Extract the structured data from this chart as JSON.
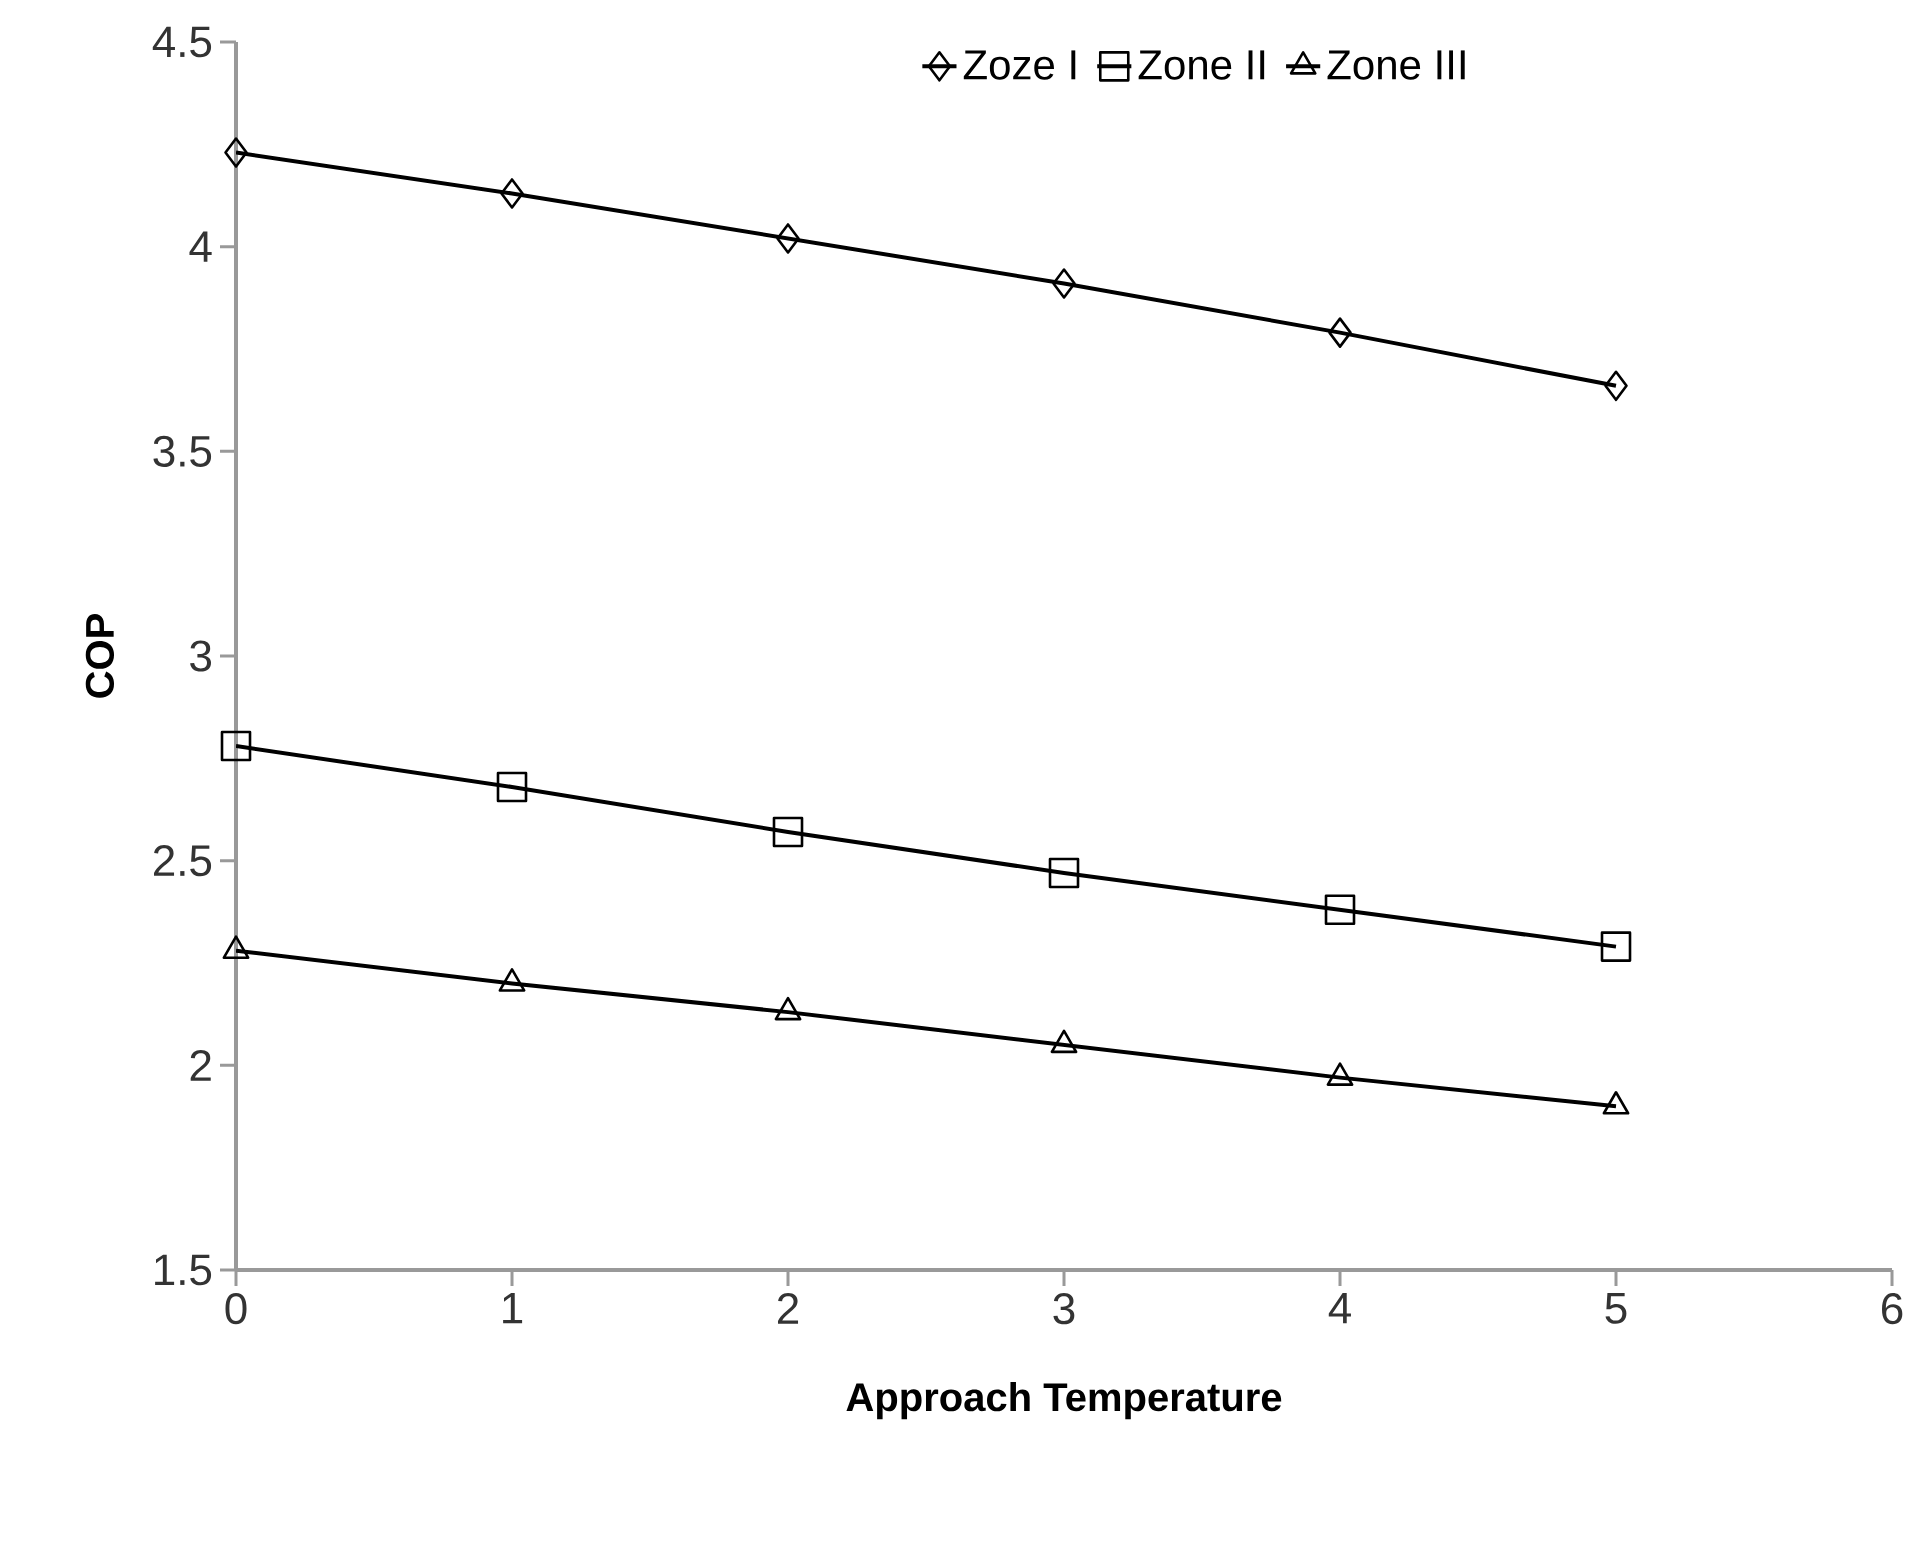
{
  "chart_data": {
    "type": "line",
    "xlabel": "Approach Temperature",
    "ylabel": "COP",
    "x": [
      0,
      1,
      2,
      3,
      4,
      5
    ],
    "series": [
      {
        "name": "Zoze I",
        "color": "#000000",
        "marker": "diamond",
        "values": [
          4.23,
          4.13,
          4.02,
          3.91,
          3.79,
          3.66
        ]
      },
      {
        "name": "Zone II",
        "color": "#000000",
        "marker": "square",
        "values": [
          2.78,
          2.68,
          2.57,
          2.47,
          2.38,
          2.29
        ]
      },
      {
        "name": "Zone III",
        "color": "#000000",
        "marker": "triangle",
        "values": [
          2.28,
          2.2,
          2.13,
          2.05,
          1.97,
          1.9
        ]
      }
    ],
    "xlim": [
      0,
      6
    ],
    "xticks": [
      0,
      1,
      2,
      3,
      4,
      5,
      6
    ],
    "ylim": [
      1.5,
      4.5
    ],
    "yticks": [
      1.5,
      2,
      2.5,
      3,
      3.5,
      4,
      4.5
    ],
    "grid": false,
    "legend": "top",
    "line_style": "solid"
  }
}
